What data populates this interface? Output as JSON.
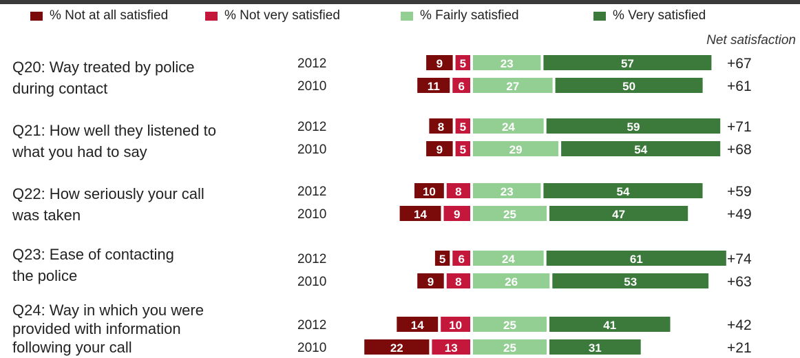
{
  "legend": {
    "items": [
      {
        "label": "% Not at all satisfied",
        "color": "#7b0b0b"
      },
      {
        "label": "% Not very satisfied",
        "color": "#c3173c"
      },
      {
        "label": "% Fairly satisfied",
        "color": "#93cf93"
      },
      {
        "label": "% Very satisfied",
        "color": "#3b7a3b"
      }
    ]
  },
  "net_label": "Net satisfaction",
  "questions": [
    {
      "label_lines": [
        "Q20: Way treated by police",
        "during contact"
      ]
    },
    {
      "label_lines": [
        "Q21: How well they listened to",
        "what you had to say"
      ]
    },
    {
      "label_lines": [
        "Q22: How seriously your call",
        "was taken"
      ]
    },
    {
      "label_lines": [
        "Q23: Ease of contacting",
        "the police"
      ]
    },
    {
      "label_lines": [
        "Q24: Way in which you were",
        "provided with information",
        "following your call"
      ]
    }
  ],
  "chart_data": {
    "type": "bar",
    "orientation": "horizontal",
    "stacked": "diverging",
    "series": [
      {
        "name": "% Not at all satisfied",
        "color": "#7b0b0b"
      },
      {
        "name": "% Not very satisfied",
        "color": "#c3173c"
      },
      {
        "name": "% Fairly satisfied",
        "color": "#93cf93"
      },
      {
        "name": "% Very satisfied",
        "color": "#3b7a3b"
      }
    ],
    "groups": [
      {
        "question": "Q20: Way treated by police during contact",
        "rows": [
          {
            "year": "2012",
            "values": [
              9,
              5,
              23,
              57
            ],
            "net": "+67"
          },
          {
            "year": "2010",
            "values": [
              11,
              6,
              27,
              50
            ],
            "net": "+61"
          }
        ]
      },
      {
        "question": "Q21: How well they listened to what you had to say",
        "rows": [
          {
            "year": "2012",
            "values": [
              8,
              5,
              24,
              59
            ],
            "net": "+71"
          },
          {
            "year": "2010",
            "values": [
              9,
              5,
              29,
              54
            ],
            "net": "+68"
          }
        ]
      },
      {
        "question": "Q22: How seriously your call was taken",
        "rows": [
          {
            "year": "2012",
            "values": [
              10,
              8,
              23,
              54
            ],
            "net": "+59"
          },
          {
            "year": "2010",
            "values": [
              14,
              9,
              25,
              47
            ],
            "net": "+49"
          }
        ]
      },
      {
        "question": "Q23: Ease of contacting the police",
        "rows": [
          {
            "year": "2012",
            "values": [
              5,
              6,
              24,
              61
            ],
            "net": "+74"
          },
          {
            "year": "2010",
            "values": [
              9,
              8,
              26,
              53
            ],
            "net": "+63"
          }
        ]
      },
      {
        "question": "Q24: Way in which you were provided with information following your call",
        "rows": [
          {
            "year": "2012",
            "values": [
              14,
              10,
              25,
              41
            ],
            "net": "+42"
          },
          {
            "year": "2010",
            "values": [
              22,
              13,
              25,
              31
            ],
            "net": "+21"
          }
        ]
      }
    ],
    "legend_position": "top",
    "grid": false
  }
}
